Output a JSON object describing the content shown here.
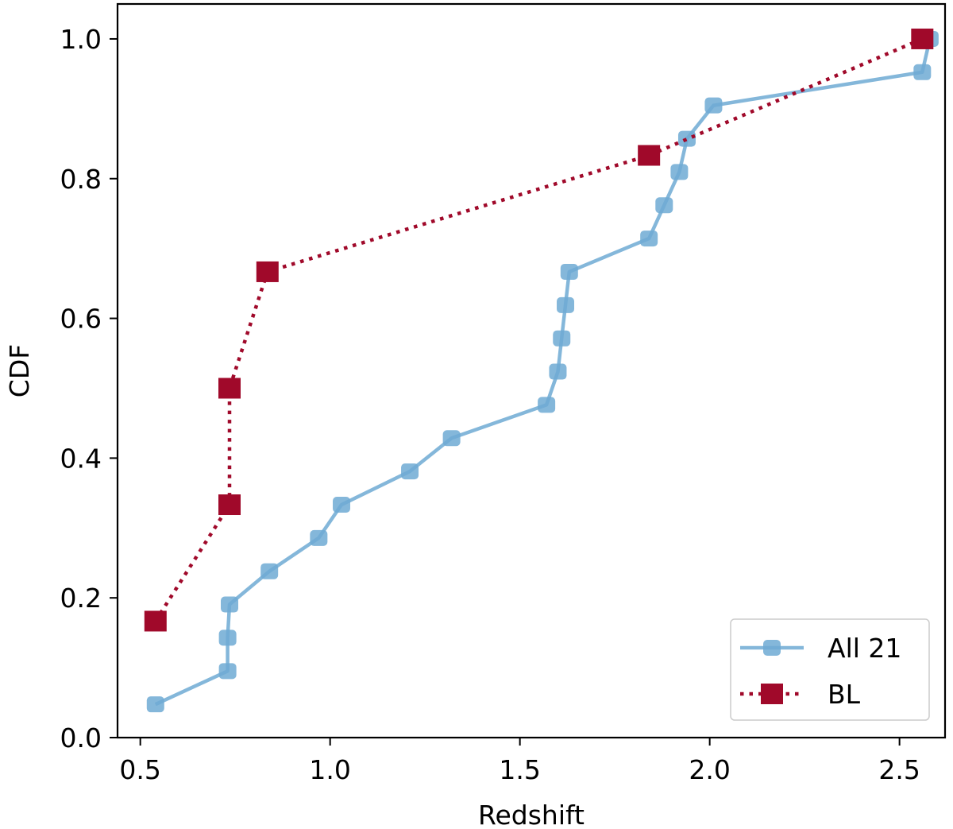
{
  "chart_data": {
    "type": "line",
    "title": "",
    "xlabel": "Redshift",
    "ylabel": "CDF",
    "xlim": [
      0.44,
      2.62
    ],
    "ylim": [
      0.0,
      1.05
    ],
    "xticks": [
      0.5,
      1.0,
      1.5,
      2.0,
      2.5
    ],
    "xtick_labels": [
      "0.5",
      "1.0",
      "1.5",
      "2.0",
      "2.5"
    ],
    "yticks": [
      0.0,
      0.2,
      0.4,
      0.6,
      0.8,
      1.0
    ],
    "ytick_labels": [
      "0.0",
      "0.2",
      "0.4",
      "0.6",
      "0.8",
      "1.0"
    ],
    "grid": false,
    "legend_position": "bottom-right",
    "series": [
      {
        "name": "All 21",
        "color": "#6FAAD3",
        "line_style": "solid",
        "marker": "circle",
        "x": [
          0.54,
          0.73,
          0.73,
          0.735,
          0.84,
          0.97,
          1.03,
          1.21,
          1.32,
          1.57,
          1.6,
          1.61,
          1.62,
          1.63,
          1.84,
          1.88,
          1.92,
          1.94,
          2.01,
          2.56,
          2.58
        ],
        "y": [
          0.0476,
          0.0952,
          0.1429,
          0.1905,
          0.2381,
          0.2857,
          0.3333,
          0.381,
          0.4286,
          0.4762,
          0.5238,
          0.5714,
          0.619,
          0.6667,
          0.7143,
          0.7619,
          0.8095,
          0.8571,
          0.9048,
          0.9524,
          1.0
        ]
      },
      {
        "name": "BL",
        "color": "#A0092A",
        "line_style": "dotted",
        "marker": "square",
        "x": [
          0.54,
          0.735,
          0.735,
          0.835,
          1.84,
          2.56
        ],
        "y": [
          0.1667,
          0.3333,
          0.5,
          0.6667,
          0.8333,
          1.0
        ]
      }
    ]
  }
}
